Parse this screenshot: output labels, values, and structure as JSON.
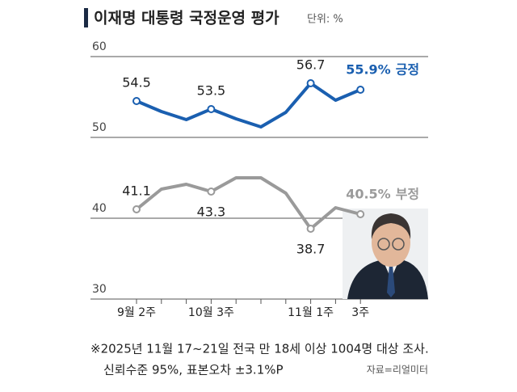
{
  "chart_data": {
    "type": "line",
    "title": "이재명 대통령 국정운영 평가",
    "unit": "단위: %",
    "categories": [
      "9월 2주",
      null,
      null,
      "10월 3주",
      null,
      null,
      null,
      "11월 1주",
      null,
      "3주"
    ],
    "series": [
      {
        "name": "긍정",
        "color": "#1a5fb0",
        "values": [
          54.5,
          53.2,
          52.2,
          53.5,
          52.3,
          51.3,
          53.1,
          56.7,
          54.6,
          55.9
        ],
        "value_labels": [
          "54.5",
          null,
          null,
          "53.5",
          null,
          null,
          null,
          "56.7",
          null,
          "55.9%"
        ]
      },
      {
        "name": "부정",
        "color": "#9a9a9a",
        "values": [
          41.1,
          43.6,
          44.2,
          43.3,
          45.0,
          45.0,
          43.1,
          38.7,
          41.3,
          40.5
        ],
        "value_labels": [
          "41.1",
          null,
          null,
          "43.3",
          null,
          null,
          null,
          "38.7",
          null,
          "40.5%"
        ]
      }
    ],
    "ylim": [
      30,
      60
    ],
    "yticks": [
      30,
      40,
      50,
      60
    ],
    "grid": true,
    "notes": [
      "※2025년 11월 17~21일 전국 만 18세 이상 1004명 대상 조사.",
      "신뢰수준 95%, 표본오차 ±3.1%P"
    ],
    "source": "자료=리얼미터"
  }
}
